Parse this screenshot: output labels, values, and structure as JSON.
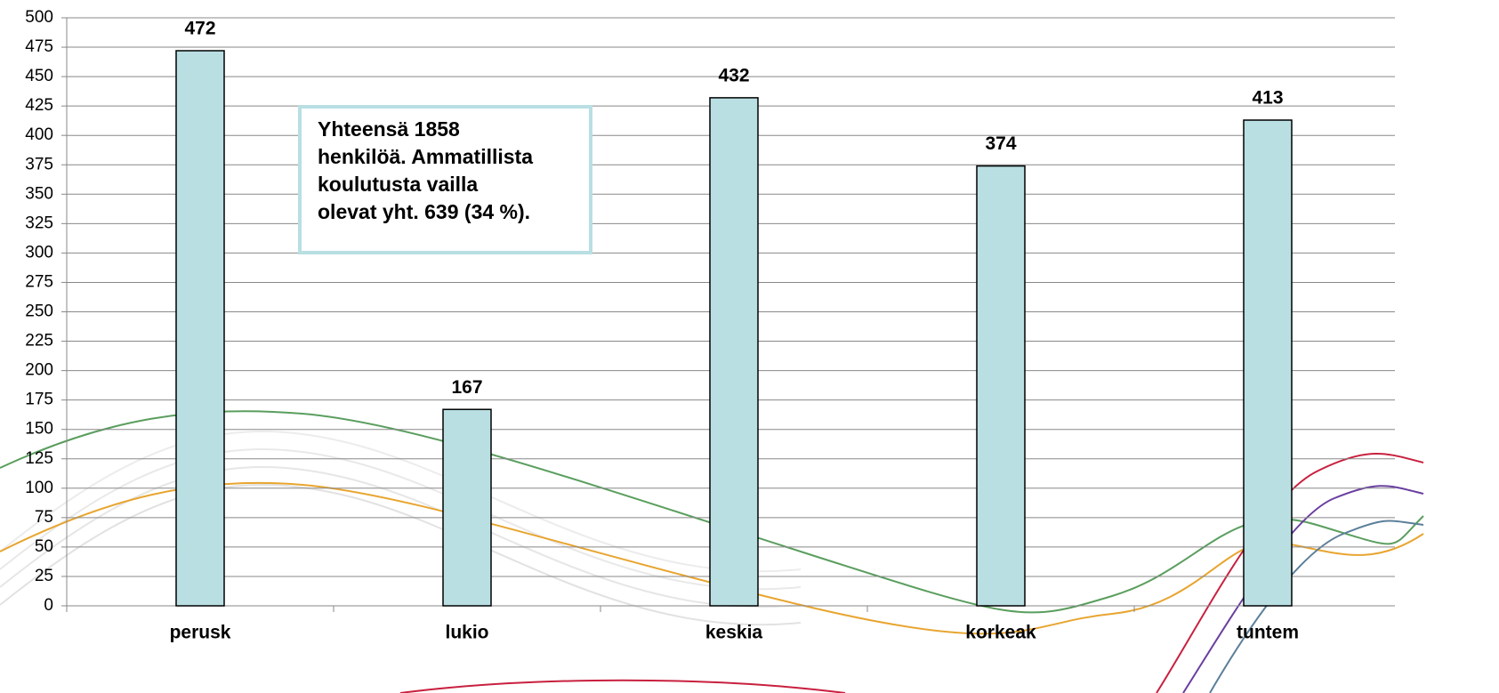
{
  "chart_data": {
    "type": "bar",
    "categories": [
      "perusk",
      "lukio",
      "keskia",
      "korkeak",
      "tuntem"
    ],
    "values": [
      472,
      167,
      432,
      374,
      413
    ],
    "color": "#b9dfe3",
    "ylim": [
      0,
      500
    ],
    "yticks": [
      0,
      25,
      50,
      75,
      100,
      125,
      150,
      175,
      200,
      225,
      250,
      275,
      300,
      325,
      350,
      375,
      400,
      425,
      450,
      475,
      500
    ],
    "grid": true,
    "annotation": [
      "Yhteensä 1858",
      "henkilöä. Ammatillista",
      "koulutusta vailla",
      "olevat yht. 639 (34 %)."
    ]
  }
}
